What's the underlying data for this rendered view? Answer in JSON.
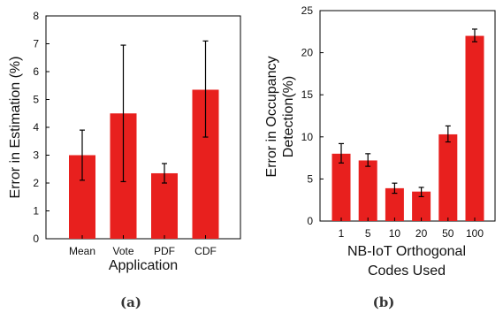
{
  "chart_data": [
    {
      "type": "bar",
      "caption": "(a)",
      "categories": [
        "Mean",
        "Vote",
        "PDF",
        "CDF"
      ],
      "values": [
        3.0,
        4.5,
        2.35,
        5.35
      ],
      "error_low": [
        2.1,
        2.05,
        2.0,
        3.65
      ],
      "error_high": [
        3.9,
        6.95,
        2.7,
        7.1
      ],
      "xlabel": "Application",
      "ylabel": "Error in Estimation (%)",
      "ylim": [
        0,
        8
      ],
      "yticks": [
        "0",
        "1",
        "2",
        "3",
        "4",
        "5",
        "6",
        "7",
        "8"
      ],
      "grid": false,
      "bar_color": "#e8201e"
    },
    {
      "type": "bar",
      "caption": "(b)",
      "categories": [
        "1",
        "5",
        "10",
        "20",
        "50",
        "100"
      ],
      "values": [
        8.0,
        7.2,
        3.9,
        3.5,
        10.3,
        22.0
      ],
      "error_low": [
        6.9,
        6.5,
        3.3,
        2.9,
        9.4,
        21.3
      ],
      "error_high": [
        9.2,
        8.0,
        4.5,
        4.0,
        11.3,
        22.8
      ],
      "xlabel_lines": [
        "NB-IoT Orthogonal",
        "Codes Used"
      ],
      "ylabel_lines": [
        "Error in Occupancy",
        "Detection(%)"
      ],
      "ylim": [
        0,
        25
      ],
      "yticks": [
        "0",
        "5",
        "10",
        "15",
        "20",
        "25"
      ],
      "grid": false,
      "bar_color": "#e8201e"
    }
  ]
}
